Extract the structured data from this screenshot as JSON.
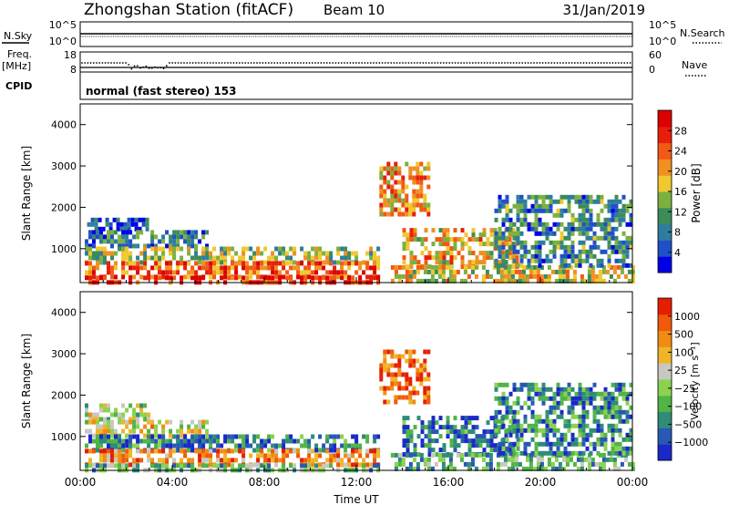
{
  "header": {
    "station": "Zhongshan Station (fitACF)",
    "beam": "Beam 10",
    "date": "31/Jan/2019"
  },
  "panels": {
    "nsky": {
      "label": "N.Sky",
      "tick_top": "10^5",
      "tick_bottom": "10^0",
      "right_label": "N.Search",
      "right_tick_top": "10^5",
      "right_tick_bottom": "10^0"
    },
    "freq": {
      "label_line1": "Freq.",
      "label_line2": "[MHz]",
      "tick_top": "18",
      "tick_bottom": "8",
      "right_label": "Nave",
      "right_tick_top": "60",
      "right_tick_bottom": "0"
    },
    "cpid": {
      "label": "CPID",
      "value": "normal (fast stereo) 153"
    }
  },
  "chart_data": [
    {
      "type": "heatmap",
      "name_key": "power",
      "ylabel": "Slant Range [km]",
      "xlabel": "",
      "y_ticks": [
        1000,
        2000,
        3000,
        4000
      ],
      "ylim": [
        180,
        4500
      ],
      "x_ticks": [
        "00:00",
        "04:00",
        "08:00",
        "12:00",
        "16:00",
        "20:00",
        "00:00"
      ],
      "xlim_hours": [
        0,
        24
      ],
      "colorbar": {
        "label": "Power [dB]",
        "ticks": [
          "4",
          "8",
          "12",
          "16",
          "20",
          "24",
          "28"
        ],
        "colors": [
          "#0000e6",
          "#1f50c8",
          "#2e7d9e",
          "#3c8c5a",
          "#7cb040",
          "#f0c830",
          "#f09020",
          "#f05a14",
          "#e61e0a",
          "#dc0000"
        ]
      },
      "regions": [
        {
          "x": [
            0.3,
            3.0
          ],
          "y": [
            1450,
            1750
          ],
          "level": 0.15
        },
        {
          "x": [
            0.2,
            5.5
          ],
          "y": [
            1050,
            1450
          ],
          "level": 0.25
        },
        {
          "x": [
            0.2,
            13.0
          ],
          "y": [
            700,
            1050
          ],
          "level": 0.45
        },
        {
          "x": [
            0.2,
            13.0
          ],
          "y": [
            350,
            700
          ],
          "level": 0.75
        },
        {
          "x": [
            0.2,
            13.0
          ],
          "y": [
            200,
            350
          ],
          "level": 0.85
        },
        {
          "x": [
            13.0,
            15.2
          ],
          "y": [
            1800,
            3100
          ],
          "level": 0.65
        },
        {
          "x": [
            14.0,
            19.0
          ],
          "y": [
            600,
            1500
          ],
          "level": 0.6
        },
        {
          "x": [
            13.5,
            24.0
          ],
          "y": [
            200,
            600
          ],
          "level": 0.55
        },
        {
          "x": [
            18.0,
            24.0
          ],
          "y": [
            600,
            2300
          ],
          "level": 0.3
        }
      ]
    },
    {
      "type": "heatmap",
      "name_key": "velocity",
      "ylabel": "Slant Range [km]",
      "xlabel": "Time UT",
      "y_ticks": [
        1000,
        2000,
        3000,
        4000
      ],
      "ylim": [
        180,
        4500
      ],
      "x_ticks": [
        "00:00",
        "04:00",
        "08:00",
        "12:00",
        "16:00",
        "20:00",
        "00:00"
      ],
      "xlim_hours": [
        0,
        24
      ],
      "colorbar": {
        "label": "Velocity [m s⁻¹]",
        "ticks": [
          "1000",
          "500",
          "100",
          "25",
          "−25",
          "−100",
          "−500",
          "−1000"
        ],
        "colors": [
          "#1a28c8",
          "#2858b4",
          "#2e8c78",
          "#50b446",
          "#8cd250",
          "#c8c8c0",
          "#f0b428",
          "#f08c14",
          "#f05a0a",
          "#e61e00"
        ]
      },
      "regions": [
        {
          "x": [
            0.2,
            3.0
          ],
          "y": [
            1400,
            1800
          ],
          "level": 0.5
        },
        {
          "x": [
            0.2,
            5.5
          ],
          "y": [
            1050,
            1400
          ],
          "level": 0.6
        },
        {
          "x": [
            0.2,
            13.0
          ],
          "y": [
            700,
            1050
          ],
          "level": 0.2
        },
        {
          "x": [
            0.2,
            13.0
          ],
          "y": [
            350,
            700
          ],
          "level": 0.75
        },
        {
          "x": [
            0.2,
            13.0
          ],
          "y": [
            200,
            350
          ],
          "level": 0.35
        },
        {
          "x": [
            13.0,
            15.2
          ],
          "y": [
            1800,
            3100
          ],
          "level": 0.82
        },
        {
          "x": [
            14.0,
            19.0
          ],
          "y": [
            600,
            1500
          ],
          "level": 0.2
        },
        {
          "x": [
            13.5,
            24.0
          ],
          "y": [
            200,
            600
          ],
          "level": 0.35
        },
        {
          "x": [
            18.0,
            24.0
          ],
          "y": [
            600,
            2300
          ],
          "level": 0.25
        }
      ]
    }
  ]
}
